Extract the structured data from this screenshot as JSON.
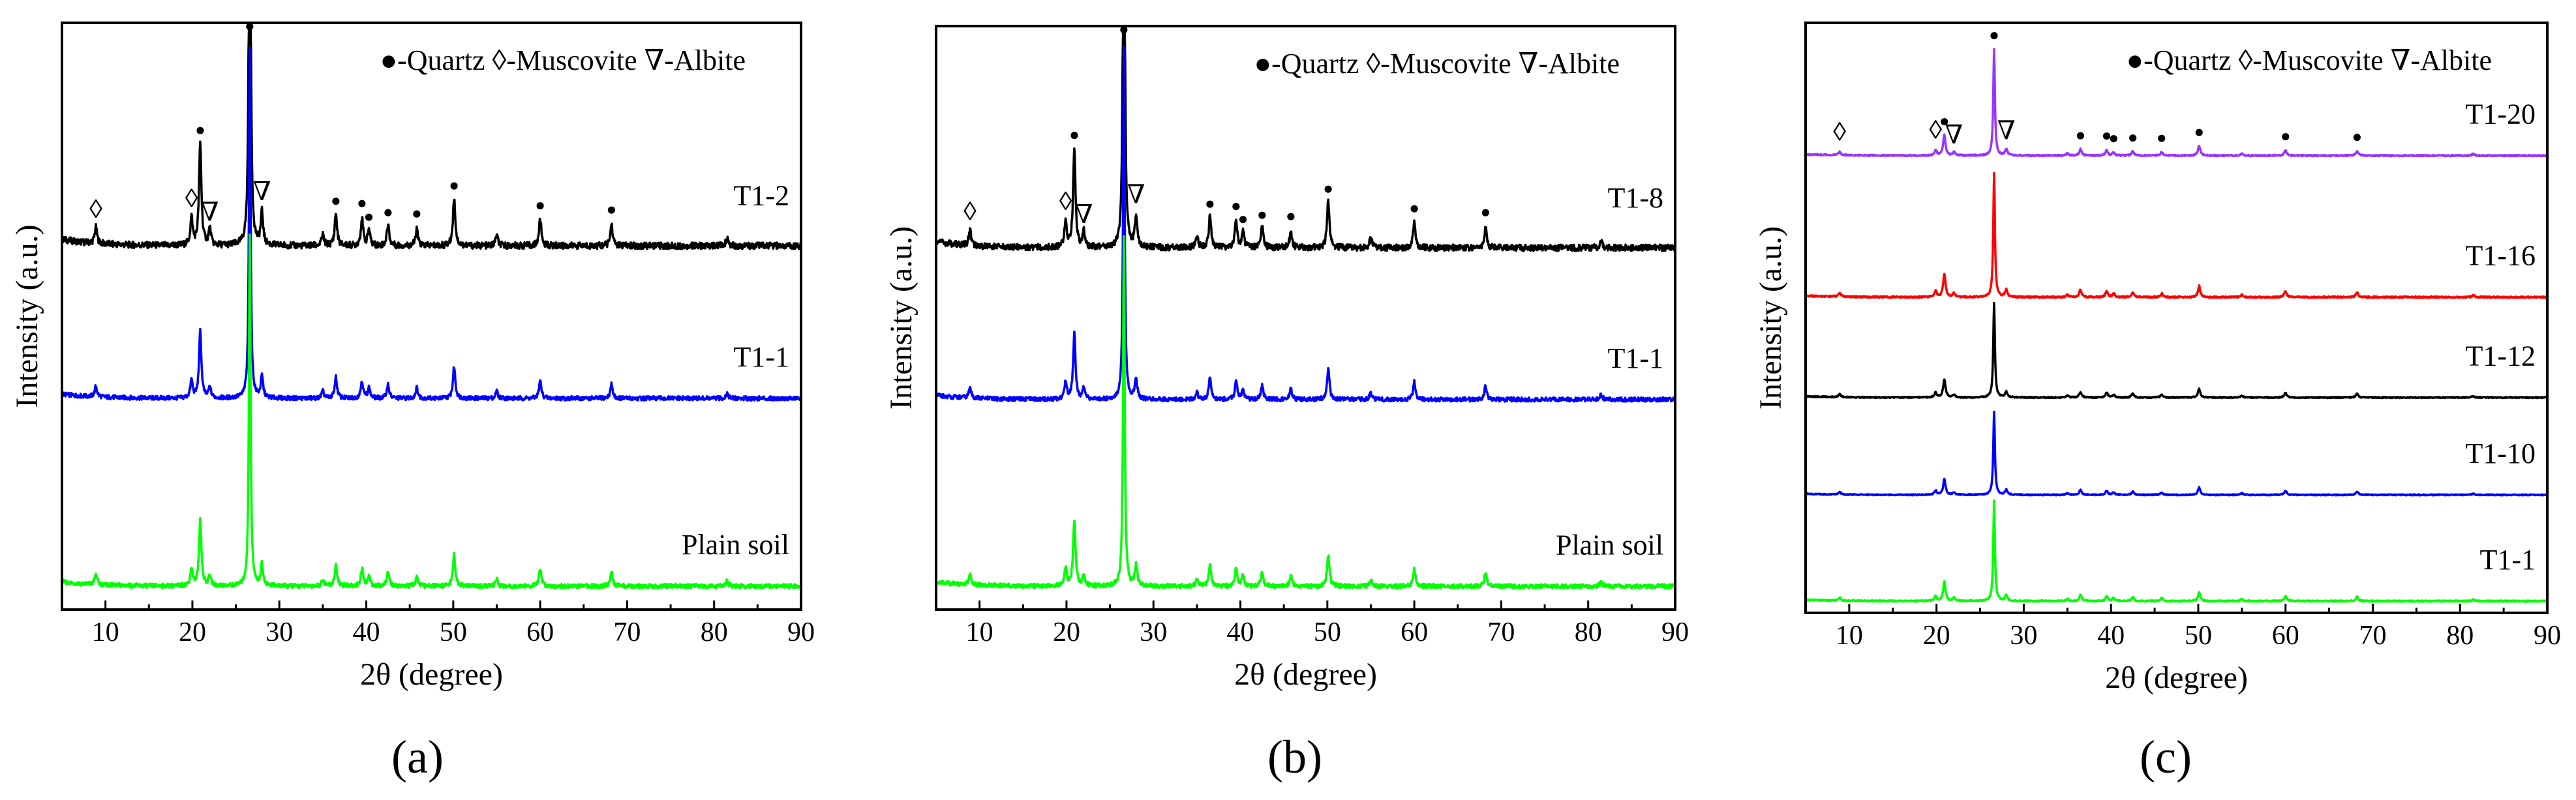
{
  "chart_data": [
    {
      "type": "line",
      "panel_label": "(a)",
      "xlabel": "2θ (degree)",
      "ylabel": "Intensity (a.u.)",
      "xlim": [
        5,
        90
      ],
      "xticks": [
        10,
        20,
        30,
        40,
        50,
        60,
        70,
        80,
        90
      ],
      "grid": false,
      "legend": {
        "text": "●-Quartz ◊-Muscovite ∇-Albite",
        "placement": "top-right"
      },
      "series": [
        {
          "name": "T1-2",
          "color": "#000000",
          "baseline": 0.62,
          "scale": 0.92
        },
        {
          "name": "T1-1",
          "color": "#0000ff",
          "baseline": 0.36,
          "scale": 0.6
        },
        {
          "name": "Plain soil",
          "color": "#00ff00",
          "baseline": 0.04,
          "scale": 0.6
        }
      ],
      "annotated_series": "T1-2",
      "markers": [
        {
          "x": 8.9,
          "symbol": "◊",
          "phase": "Muscovite"
        },
        {
          "x": 19.9,
          "symbol": "◊",
          "phase": "Muscovite"
        },
        {
          "x": 20.9,
          "symbol": "●",
          "phase": "Quartz"
        },
        {
          "x": 22.0,
          "symbol": "∇",
          "phase": "Albite"
        },
        {
          "x": 26.6,
          "symbol": "●",
          "phase": "Quartz"
        },
        {
          "x": 28.0,
          "symbol": "∇",
          "phase": "Albite"
        },
        {
          "x": 36.5,
          "symbol": "●",
          "phase": "Quartz"
        },
        {
          "x": 39.5,
          "symbol": "●",
          "phase": "Quartz"
        },
        {
          "x": 40.3,
          "symbol": "●",
          "phase": "Quartz"
        },
        {
          "x": 42.5,
          "symbol": "●",
          "phase": "Quartz"
        },
        {
          "x": 45.8,
          "symbol": "●",
          "phase": "Quartz"
        },
        {
          "x": 50.1,
          "symbol": "●",
          "phase": "Quartz"
        },
        {
          "x": 60.0,
          "symbol": "●",
          "phase": "Quartz"
        },
        {
          "x": 68.2,
          "symbol": "●",
          "phase": "Quartz"
        }
      ]
    },
    {
      "type": "line",
      "panel_label": "(b)",
      "xlabel": "2θ (degree)",
      "ylabel": "Intensity (a.u.)",
      "xlim": [
        5,
        90
      ],
      "xticks": [
        10,
        20,
        30,
        40,
        50,
        60,
        70,
        80,
        90
      ],
      "grid": false,
      "legend": {
        "text": "●-Quartz ◊-Muscovite ∇-Albite",
        "placement": "top-right"
      },
      "series": [
        {
          "name": "T1-8",
          "color": "#000000",
          "baseline": 0.62,
          "scale": 0.9
        },
        {
          "name": "T1-1",
          "color": "#0000ff",
          "baseline": 0.36,
          "scale": 0.6
        },
        {
          "name": "Plain soil",
          "color": "#00ff00",
          "baseline": 0.04,
          "scale": 0.6
        }
      ],
      "annotated_series": "T1-8",
      "markers": [
        {
          "x": 8.9,
          "symbol": "◊",
          "phase": "Muscovite"
        },
        {
          "x": 19.9,
          "symbol": "◊",
          "phase": "Muscovite"
        },
        {
          "x": 20.9,
          "symbol": "●",
          "phase": "Quartz"
        },
        {
          "x": 22.0,
          "symbol": "∇",
          "phase": "Albite"
        },
        {
          "x": 26.6,
          "symbol": "●",
          "phase": "Quartz"
        },
        {
          "x": 28.0,
          "symbol": "∇",
          "phase": "Albite"
        },
        {
          "x": 36.5,
          "symbol": "●",
          "phase": "Quartz"
        },
        {
          "x": 39.5,
          "symbol": "●",
          "phase": "Quartz"
        },
        {
          "x": 40.3,
          "symbol": "●",
          "phase": "Quartz"
        },
        {
          "x": 42.5,
          "symbol": "●",
          "phase": "Quartz"
        },
        {
          "x": 45.8,
          "symbol": "●",
          "phase": "Quartz"
        },
        {
          "x": 50.1,
          "symbol": "●",
          "phase": "Quartz"
        },
        {
          "x": 60.0,
          "symbol": "●",
          "phase": "Quartz"
        },
        {
          "x": 68.2,
          "symbol": "●",
          "phase": "Quartz"
        }
      ]
    },
    {
      "type": "line",
      "panel_label": "(c)",
      "xlabel": "2θ (degree)",
      "ylabel": "Intensity (a.u.)",
      "xlim": [
        5,
        90
      ],
      "xticks": [
        10,
        20,
        30,
        40,
        50,
        60,
        70,
        80,
        90
      ],
      "grid": false,
      "legend": {
        "text": "●-Quartz ◊-Muscovite ∇-Albite",
        "placement": "top-right"
      },
      "series": [
        {
          "name": "T1-20",
          "color": "#9933ff",
          "baseline": 0.775,
          "scale": 0.18
        },
        {
          "name": "T1-16",
          "color": "#ff0000",
          "baseline": 0.535,
          "scale": 0.21
        },
        {
          "name": "T1-12",
          "color": "#000000",
          "baseline": 0.365,
          "scale": 0.16
        },
        {
          "name": "T1-10",
          "color": "#0000ff",
          "baseline": 0.2,
          "scale": 0.14
        },
        {
          "name": "T1-1",
          "color": "#00ff00",
          "baseline": 0.02,
          "scale": 0.17
        }
      ],
      "annotated_series": "T1-20",
      "markers": [
        {
          "x": 8.9,
          "symbol": "◊",
          "phase": "Muscovite"
        },
        {
          "x": 19.9,
          "symbol": "◊",
          "phase": "Muscovite"
        },
        {
          "x": 20.9,
          "symbol": "●",
          "phase": "Quartz"
        },
        {
          "x": 22.0,
          "symbol": "∇",
          "phase": "Albite"
        },
        {
          "x": 26.6,
          "symbol": "●",
          "phase": "Quartz"
        },
        {
          "x": 28.0,
          "symbol": "∇",
          "phase": "Albite"
        },
        {
          "x": 36.5,
          "symbol": "●",
          "phase": "Quartz"
        },
        {
          "x": 39.5,
          "symbol": "●",
          "phase": "Quartz"
        },
        {
          "x": 40.3,
          "symbol": "●",
          "phase": "Quartz"
        },
        {
          "x": 42.5,
          "symbol": "●",
          "phase": "Quartz"
        },
        {
          "x": 45.8,
          "symbol": "●",
          "phase": "Quartz"
        },
        {
          "x": 50.1,
          "symbol": "●",
          "phase": "Quartz"
        },
        {
          "x": 60.0,
          "symbol": "●",
          "phase": "Quartz"
        },
        {
          "x": 68.2,
          "symbol": "●",
          "phase": "Quartz"
        }
      ]
    }
  ],
  "xrd_peaks": [
    {
      "x": 8.9,
      "h": 0.03
    },
    {
      "x": 19.9,
      "h": 0.05
    },
    {
      "x": 20.9,
      "h": 0.19
    },
    {
      "x": 22.0,
      "h": 0.03
    },
    {
      "x": 26.6,
      "h": 1.0
    },
    {
      "x": 28.0,
      "h": 0.06
    },
    {
      "x": 35.0,
      "h": 0.02
    },
    {
      "x": 36.5,
      "h": 0.06
    },
    {
      "x": 39.5,
      "h": 0.05
    },
    {
      "x": 40.3,
      "h": 0.03
    },
    {
      "x": 42.5,
      "h": 0.04
    },
    {
      "x": 45.8,
      "h": 0.03
    },
    {
      "x": 50.1,
      "h": 0.09
    },
    {
      "x": 55.0,
      "h": 0.02
    },
    {
      "x": 60.0,
      "h": 0.05
    },
    {
      "x": 68.2,
      "h": 0.04
    },
    {
      "x": 81.5,
      "h": 0.015
    }
  ]
}
